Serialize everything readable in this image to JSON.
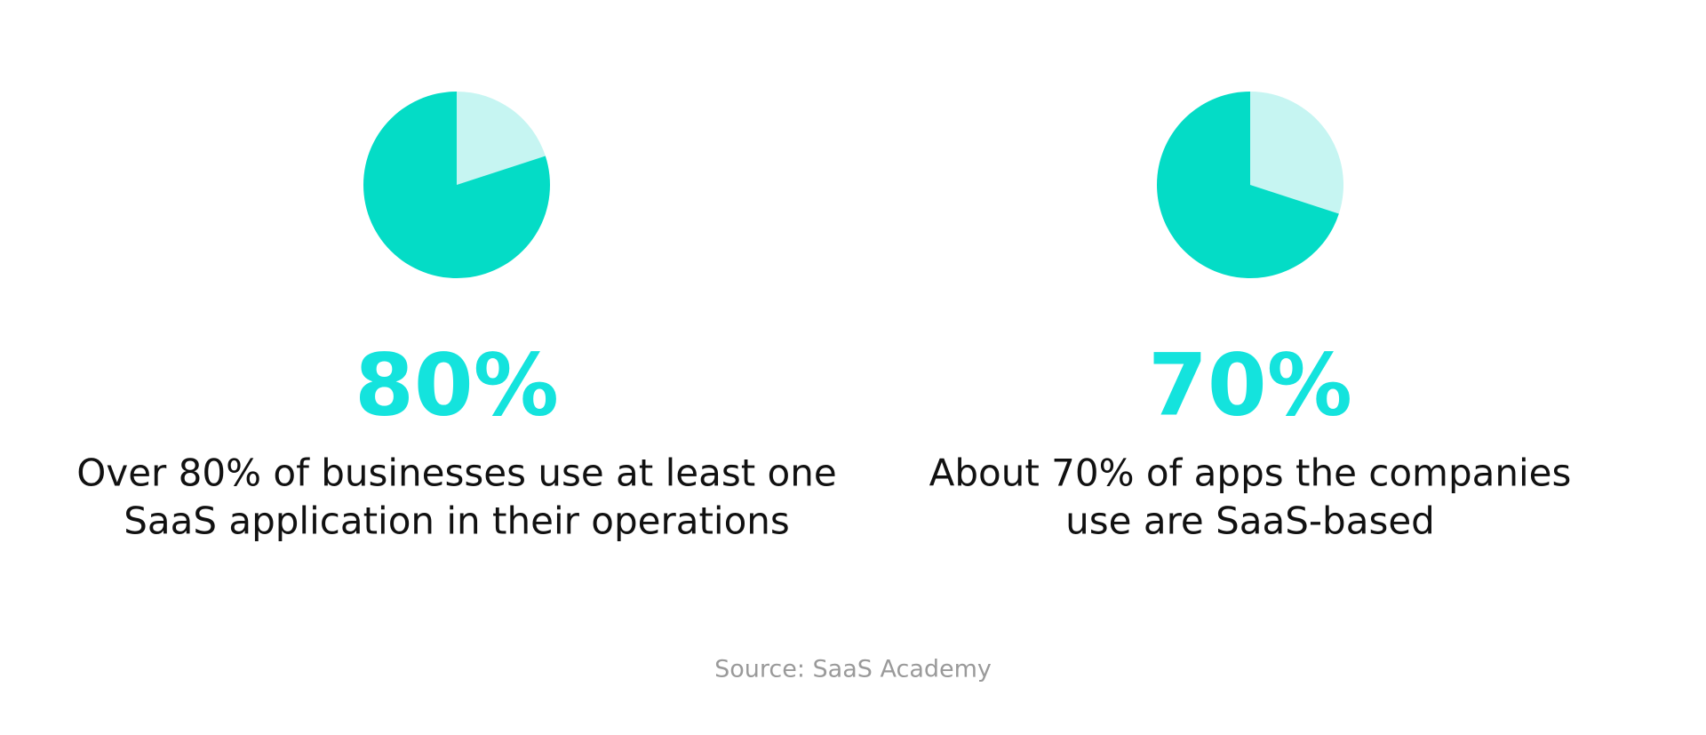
{
  "chart_data": [
    {
      "type": "pie",
      "values": [
        80,
        20
      ],
      "value_labels": [
        "80%",
        null
      ],
      "colors": [
        "#04dcc6",
        "#c6f5f2"
      ],
      "label_color": "#14e3dd",
      "caption": [
        "Over 80% of businesses use at least one",
        "SaaS application in their operations"
      ]
    },
    {
      "type": "pie",
      "values": [
        70,
        30
      ],
      "value_labels": [
        "70%",
        null
      ],
      "colors": [
        "#04dcc6",
        "#c6f5f2"
      ],
      "label_color": "#14e3dd",
      "caption": [
        "About 70% of apps the companies",
        "use are SaaS-based"
      ]
    }
  ],
  "source": "Source: SaaS Academy"
}
